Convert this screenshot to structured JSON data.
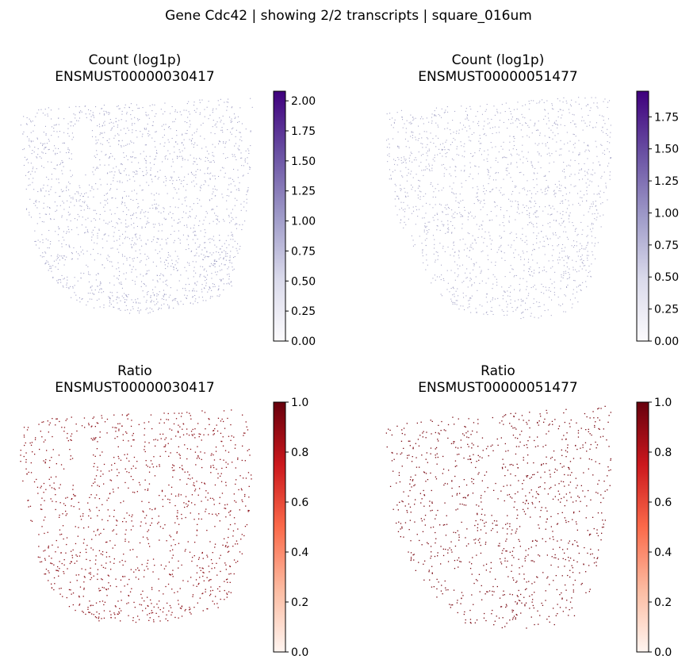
{
  "figure": {
    "title": "Gene Cdc42 | showing 2/2 transcripts | square_016um"
  },
  "chart_data": [
    {
      "type": "scatter",
      "title_line1": "Count (log1p)",
      "title_line2": "ENSMUST00000030417",
      "colormap": "Purples",
      "point_color": "#a4a3c7",
      "colorbar": {
        "min": 0.0,
        "max": 2.08,
        "ticks": [
          "0.00",
          "0.25",
          "0.50",
          "0.75",
          "1.00",
          "1.25",
          "1.50",
          "1.75",
          "2.00"
        ],
        "tick_values": [
          0,
          0.25,
          0.5,
          0.75,
          1.0,
          1.25,
          1.5,
          1.75,
          2.0
        ]
      }
    },
    {
      "type": "scatter",
      "title_line1": "Count (log1p)",
      "title_line2": "ENSMUST00000051477",
      "colormap": "Purples",
      "point_color": "#a9a8c9",
      "colorbar": {
        "min": 0.0,
        "max": 1.95,
        "ticks": [
          "0.00",
          "0.25",
          "0.50",
          "0.75",
          "1.00",
          "1.25",
          "1.50",
          "1.75"
        ],
        "tick_values": [
          0,
          0.25,
          0.5,
          0.75,
          1.0,
          1.25,
          1.5,
          1.75
        ]
      }
    },
    {
      "type": "scatter",
      "title_line1": "Ratio",
      "title_line2": "ENSMUST00000030417",
      "colormap": "Reds",
      "point_color": "#8a1018",
      "colorbar": {
        "min": 0.0,
        "max": 1.0,
        "ticks": [
          "0.0",
          "0.2",
          "0.4",
          "0.6",
          "0.8",
          "1.0"
        ],
        "tick_values": [
          0,
          0.2,
          0.4,
          0.6,
          0.8,
          1.0
        ]
      }
    },
    {
      "type": "scatter",
      "title_line1": "Ratio",
      "title_line2": "ENSMUST00000051477",
      "colormap": "Reds",
      "point_color": "#7a0b14",
      "colorbar": {
        "min": 0.0,
        "max": 1.0,
        "ticks": [
          "0.0",
          "0.2",
          "0.4",
          "0.6",
          "0.8",
          "1.0"
        ],
        "tick_values": [
          0,
          0.2,
          0.4,
          0.6,
          0.8,
          1.0
        ]
      }
    }
  ]
}
